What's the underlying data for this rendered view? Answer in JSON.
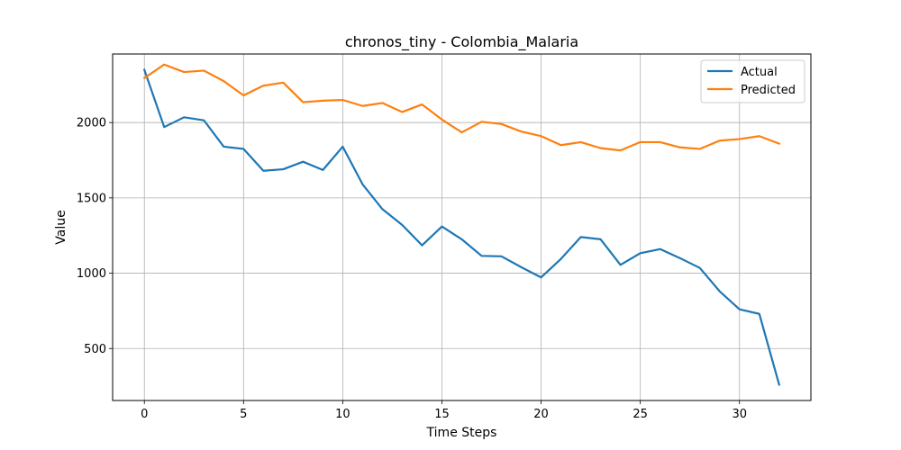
{
  "chart_data": {
    "type": "line",
    "title": "chronos_tiny - Colombia_Malaria",
    "xlabel": "Time Steps",
    "ylabel": "Value",
    "xlim": [
      -1.6,
      33.6
    ],
    "ylim": [
      155,
      2455
    ],
    "xticks": [
      0,
      5,
      10,
      15,
      20,
      25,
      30
    ],
    "yticks": [
      500,
      1000,
      1500,
      2000
    ],
    "grid": true,
    "legend_position": "top-right",
    "x": [
      0,
      1,
      2,
      3,
      4,
      5,
      6,
      7,
      8,
      9,
      10,
      11,
      12,
      13,
      14,
      15,
      16,
      17,
      18,
      19,
      20,
      21,
      22,
      23,
      24,
      25,
      26,
      27,
      28,
      29,
      30,
      31,
      32
    ],
    "series": [
      {
        "name": "Actual",
        "color": "#1f77b4",
        "values": [
          2350,
          1970,
          2035,
          2015,
          1840,
          1825,
          1680,
          1690,
          1740,
          1685,
          1840,
          1590,
          1425,
          1320,
          1185,
          1310,
          1225,
          1115,
          1112,
          1040,
          972,
          1095,
          1240,
          1225,
          1055,
          1133,
          1160,
          1100,
          1035,
          880,
          760,
          730,
          260
        ]
      },
      {
        "name": "Predicted",
        "color": "#ff7f0e",
        "values": [
          2295,
          2385,
          2335,
          2345,
          2275,
          2180,
          2245,
          2265,
          2135,
          2145,
          2150,
          2110,
          2130,
          2070,
          2120,
          2020,
          1935,
          2005,
          1990,
          1940,
          1910,
          1850,
          1870,
          1830,
          1815,
          1870,
          1870,
          1835,
          1825,
          1880,
          1890,
          1910,
          1860
        ]
      }
    ]
  }
}
